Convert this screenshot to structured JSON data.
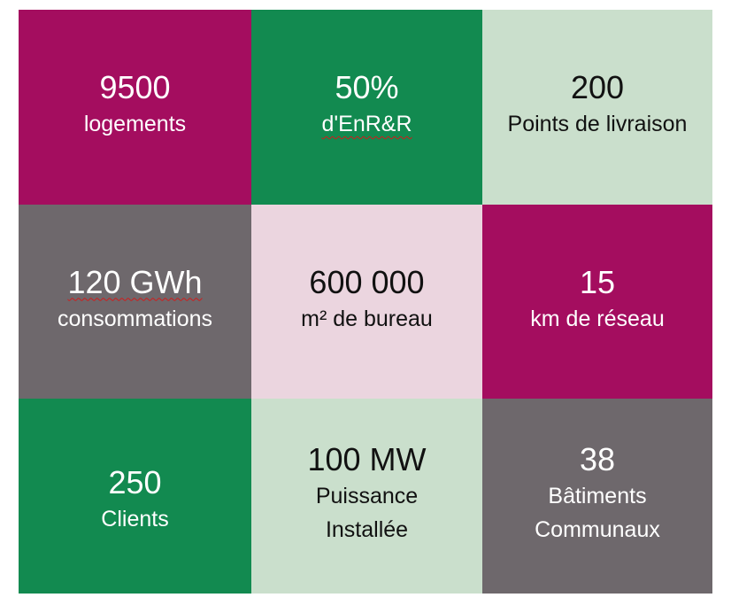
{
  "colors": {
    "magenta": "#a40d5f",
    "green": "#128a50",
    "light_green": "#cadfcc",
    "gray": "#6e686c",
    "light_pink": "#ebd5df",
    "white_text": "#ffffff",
    "dark_text": "#111111"
  },
  "tiles": [
    {
      "value": "9500",
      "label": "logements"
    },
    {
      "value": "50%",
      "label": "d'EnR&R"
    },
    {
      "value": "200",
      "label": "Points de livraison"
    },
    {
      "value": "120 GWh",
      "label": "consommations"
    },
    {
      "value": "600 000",
      "label": "m² de bureau"
    },
    {
      "value": "15",
      "label": "km de réseau"
    },
    {
      "value": "250",
      "label": "Clients"
    },
    {
      "value": "100 MW",
      "label_line1": "Puissance",
      "label_line2": "Installée"
    },
    {
      "value": "38",
      "label_line1": "Bâtiments",
      "label_line2": "Communaux"
    }
  ]
}
